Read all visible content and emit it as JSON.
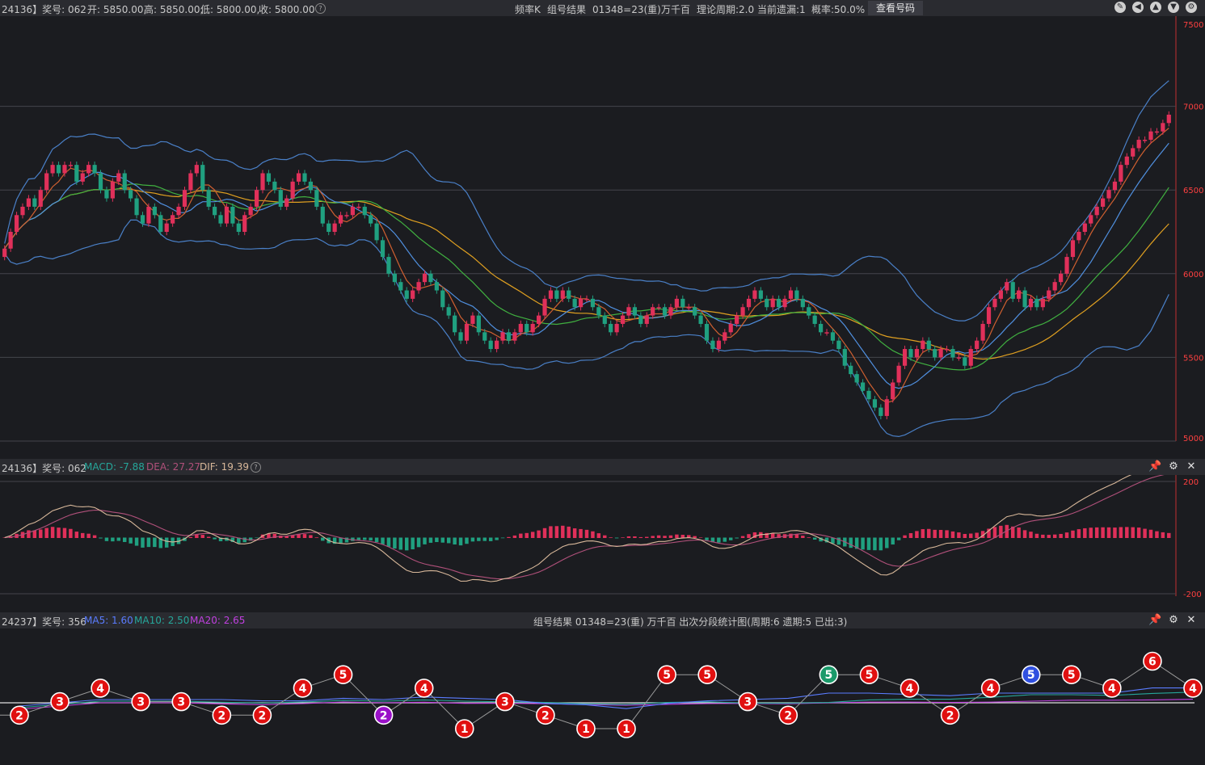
{
  "top_bar": {
    "left_prefix": "24136】奖号: 062",
    "open": "开: 5850.00,",
    "high": "高: 5850.00,",
    "low": "低: 5800.00,",
    "close": "收: 5800.00",
    "center_items": [
      "频率K",
      "组号结果",
      "01348=23(重)",
      "万千百",
      "理论周期:2.0",
      "当前遗漏:1",
      "概率:50.0%"
    ],
    "view_button": "查看号码",
    "icons": [
      "pencil-icon",
      "back-icon",
      "up-icon",
      "down-icon",
      "gear-icon"
    ]
  },
  "macd_bar": {
    "prefix": "24136】奖号: 062",
    "macd": "MACD: -7.88",
    "dea": "DEA: 27.27",
    "dif": "DIF: 19.39",
    "colors": {
      "macd": "#26a69a",
      "dea": "#b0507a",
      "dif": "#d8b89a"
    }
  },
  "dist_bar": {
    "prefix": "24237】奖号: 356",
    "ma5": "MA5: 1.60",
    "ma10": "MA10: 2.50",
    "ma20": "MA20: 2.65",
    "title": "组号结果  01348=23(重)    万千百  出次分段统计图(周期:6  遗期:5 已出:3)",
    "colors": {
      "ma5": "#5a7cff",
      "ma10": "#26a69a",
      "ma20": "#c040e0"
    }
  },
  "chart_data": [
    {
      "type": "candlestick",
      "yticks": [
        7500,
        7000,
        6500,
        6000,
        5500,
        5000
      ],
      "ylim": [
        5000,
        7500
      ],
      "closes": [
        6150,
        6250,
        6350,
        6400,
        6450,
        6400,
        6500,
        6600,
        6650,
        6600,
        6650,
        6650,
        6550,
        6600,
        6650,
        6600,
        6500,
        6450,
        6550,
        6600,
        6500,
        6450,
        6350,
        6300,
        6400,
        6350,
        6250,
        6300,
        6350,
        6400,
        6500,
        6600,
        6650,
        6500,
        6400,
        6350,
        6300,
        6400,
        6300,
        6250,
        6350,
        6400,
        6500,
        6600,
        6550,
        6500,
        6400,
        6450,
        6550,
        6600,
        6550,
        6500,
        6400,
        6300,
        6250,
        6300,
        6350,
        6350,
        6400,
        6400,
        6350,
        6300,
        6200,
        6100,
        6000,
        5950,
        5900,
        5850,
        5900,
        5950,
        6000,
        5950,
        5900,
        5800,
        5750,
        5650,
        5600,
        5700,
        5750,
        5650,
        5600,
        5550,
        5600,
        5650,
        5600,
        5650,
        5700,
        5650,
        5700,
        5750,
        5850,
        5900,
        5850,
        5900,
        5850,
        5800,
        5850,
        5850,
        5800,
        5750,
        5700,
        5650,
        5700,
        5750,
        5800,
        5750,
        5700,
        5750,
        5800,
        5800,
        5750,
        5800,
        5850,
        5800,
        5800,
        5750,
        5700,
        5600,
        5550,
        5600,
        5650,
        5700,
        5750,
        5800,
        5850,
        5900,
        5850,
        5800,
        5850,
        5800,
        5850,
        5900,
        5850,
        5800,
        5750,
        5700,
        5650,
        5650,
        5600,
        5550,
        5450,
        5400,
        5350,
        5300,
        5250,
        5200,
        5150,
        5250,
        5350,
        5450,
        5550,
        5500,
        5550,
        5600,
        5550,
        5500,
        5550,
        5550,
        5500,
        5500,
        5450,
        5550,
        5600,
        5700,
        5800,
        5850,
        5900,
        5950,
        5850,
        5900,
        5800,
        5850,
        5800,
        5850,
        5900,
        5950,
        6000,
        6100,
        6200,
        6250,
        6300,
        6350,
        6400,
        6450,
        6500,
        6550,
        6650,
        6700,
        6750,
        6800,
        6800,
        6850,
        6850,
        6900,
        6950
      ]
    },
    {
      "type": "line-histogram",
      "yticks": [
        200,
        -200
      ],
      "ylim": [
        -200,
        200
      ]
    },
    {
      "type": "scatter-line",
      "values": [
        2,
        3,
        4,
        3,
        3,
        2,
        2,
        4,
        5,
        2,
        4,
        1,
        3,
        2,
        1,
        1,
        5,
        5,
        3,
        2,
        5,
        5,
        4,
        2,
        4,
        5,
        5,
        4,
        6,
        4
      ],
      "colors": {
        "default": "#e01010",
        "highlight_green": "#1a9a6a",
        "highlight_purple": "#9a10c8",
        "highlight_blue": "#3050e0"
      },
      "special": {
        "9": "purple",
        "20": "green",
        "25": "blue"
      }
    }
  ]
}
